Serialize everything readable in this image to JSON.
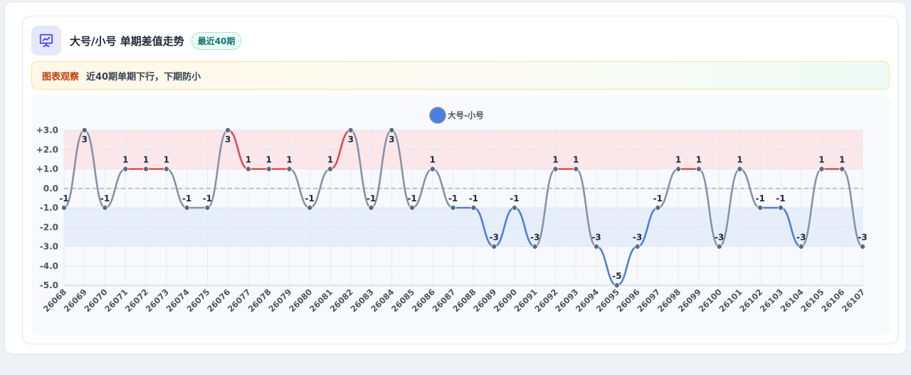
{
  "header": {
    "title": "大号/小号 单期差值走势",
    "badge": "最近40期",
    "icon": "chart-presentation-icon"
  },
  "notice": {
    "label": "图表观察",
    "text": "近40期单期下行，下期防小"
  },
  "colors": {
    "up": "#dc4f4f",
    "down": "#4e7fd8",
    "flat": "#8693a6",
    "legend": "#4b7fe6",
    "band_high": "#fbe6ea",
    "band_low": "#e6eefb",
    "badge": "#0f766e",
    "notice_label": "#c2410c"
  },
  "chart_data": {
    "type": "line",
    "legend": [
      "大号-小号"
    ],
    "categories": [
      "26068",
      "26069",
      "26070",
      "26071",
      "26072",
      "26073",
      "26074",
      "26075",
      "26076",
      "26077",
      "26078",
      "26079",
      "26080",
      "26081",
      "26082",
      "26083",
      "26084",
      "26085",
      "26086",
      "26087",
      "26088",
      "26089",
      "26090",
      "26091",
      "26092",
      "26093",
      "26094",
      "26095",
      "26096",
      "26097",
      "26098",
      "26099",
      "26100",
      "26101",
      "26102",
      "26103",
      "26104",
      "26105",
      "26106",
      "26107"
    ],
    "series": [
      {
        "name": "大号-小号",
        "values": [
          -1,
          3,
          -1,
          1,
          1,
          1,
          -1,
          -1,
          3,
          1,
          1,
          1,
          -1,
          1,
          3,
          -1,
          3,
          -1,
          1,
          -1,
          -1,
          -3,
          -1,
          -3,
          1,
          1,
          -3,
          -5,
          -3,
          -1,
          1,
          1,
          -3,
          1,
          -1,
          -1,
          -3,
          1,
          1,
          -3
        ]
      }
    ],
    "ylim": [
      -5,
      3
    ],
    "yticks": [
      "-5.0",
      "-4.0",
      "-3.0",
      "-2.0",
      "-1.0",
      "0.0",
      "+1.0",
      "+2.0",
      "+3.0"
    ],
    "bands": [
      {
        "from": 1,
        "to": 3,
        "color": "#fbe6ea"
      },
      {
        "from": -3,
        "to": -1,
        "color": "#e6eefb"
      }
    ],
    "zero_line": true,
    "grid": true,
    "legend_position": "top-center"
  }
}
